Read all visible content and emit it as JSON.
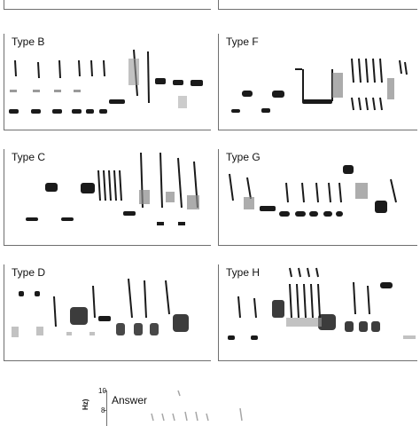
{
  "panels": {
    "typeB": {
      "label": "Type B"
    },
    "typeF": {
      "label": "Type F"
    },
    "typeC": {
      "label": "Type C"
    },
    "typeG": {
      "label": "Type G"
    },
    "typeD": {
      "label": "Type D"
    },
    "typeH": {
      "label": "Type H"
    }
  },
  "answer": {
    "label": "Answer",
    "axis_unit_fragment": "Hz)",
    "tick_top": "10",
    "tick_second": "8"
  },
  "colors": {
    "ink": "#1a1a1a",
    "axis": "#6f6f6f",
    "background": "#ffffff"
  }
}
